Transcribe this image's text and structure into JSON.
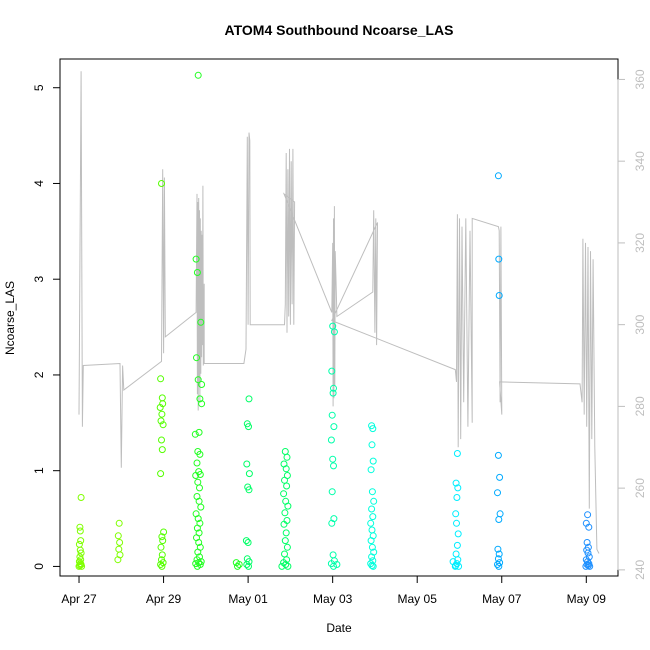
{
  "chart_data": {
    "type": "scatter",
    "title": "ATOM4 Southbound Ncoarse_LAS",
    "xlabel": "Date",
    "ylabel": "Ncoarse_LAS",
    "x_ticks": [
      "Apr 27",
      "Apr 29",
      "May 01",
      "May 03",
      "May 05",
      "May 07",
      "May 09"
    ],
    "x_tick_days": [
      0,
      2,
      4,
      6,
      8,
      10,
      12
    ],
    "xlim_days": [
      -0.45,
      12.75
    ],
    "y_ticks": [
      0,
      1,
      2,
      3,
      4,
      5
    ],
    "ylim": [
      -0.1,
      5.3
    ],
    "y2_ticks": [
      240,
      260,
      280,
      300,
      320,
      340,
      360
    ],
    "y2lim": [
      238.5,
      365
    ],
    "grid": false,
    "series": [
      {
        "role": "points",
        "marker": "open-circle",
        "colors": [
          "#7FFF00",
          "#55FF00",
          "#22FF22",
          "#00FF66",
          "#00FFAA",
          "#00FFDD",
          "#00EEFF",
          "#00AAFF",
          "#1E90FF"
        ],
        "points": [
          [
            0.05,
            0.72
          ],
          [
            0.02,
            0.41
          ],
          [
            0.03,
            0.37
          ],
          [
            0.04,
            0.27
          ],
          [
            0.01,
            0.23
          ],
          [
            0.03,
            0.17
          ],
          [
            0.05,
            0.14
          ],
          [
            0.02,
            0.1
          ],
          [
            0.04,
            0.07
          ],
          [
            0.01,
            0.05
          ],
          [
            0.03,
            0.03
          ],
          [
            0.05,
            0.02
          ],
          [
            0.02,
            0.01
          ],
          [
            0.06,
            0.0
          ],
          [
            0.0,
            0.0
          ],
          [
            0.95,
            0.45
          ],
          [
            0.93,
            0.32
          ],
          [
            0.96,
            0.25
          ],
          [
            0.94,
            0.18
          ],
          [
            0.97,
            0.12
          ],
          [
            0.92,
            0.07
          ],
          [
            1.95,
            4.0
          ],
          [
            1.93,
            1.96
          ],
          [
            1.97,
            1.76
          ],
          [
            1.98,
            1.7
          ],
          [
            1.92,
            1.66
          ],
          [
            1.96,
            1.59
          ],
          [
            1.94,
            1.52
          ],
          [
            1.99,
            1.48
          ],
          [
            1.95,
            1.32
          ],
          [
            1.97,
            1.22
          ],
          [
            1.93,
            0.97
          ],
          [
            2.0,
            0.36
          ],
          [
            1.96,
            0.31
          ],
          [
            1.98,
            0.27
          ],
          [
            1.94,
            0.2
          ],
          [
            1.97,
            0.12
          ],
          [
            1.95,
            0.07
          ],
          [
            1.99,
            0.04
          ],
          [
            1.93,
            0.02
          ],
          [
            1.96,
            0.0
          ],
          [
            2.82,
            5.13
          ],
          [
            2.77,
            3.21
          ],
          [
            2.8,
            3.07
          ],
          [
            2.78,
            2.18
          ],
          [
            2.82,
            1.95
          ],
          [
            2.86,
            1.75
          ],
          [
            2.9,
            1.9
          ],
          [
            2.9,
            1.7
          ],
          [
            2.75,
            1.38
          ],
          [
            2.84,
            1.4
          ],
          [
            2.88,
            2.55
          ],
          [
            2.81,
            1.2
          ],
          [
            2.86,
            1.17
          ],
          [
            2.79,
            1.08
          ],
          [
            2.83,
            0.99
          ],
          [
            2.87,
            0.96
          ],
          [
            2.76,
            0.95
          ],
          [
            2.81,
            0.88
          ],
          [
            2.85,
            0.82
          ],
          [
            2.79,
            0.73
          ],
          [
            2.84,
            0.68
          ],
          [
            2.88,
            0.62
          ],
          [
            2.77,
            0.55
          ],
          [
            2.82,
            0.5
          ],
          [
            2.86,
            0.45
          ],
          [
            2.8,
            0.4
          ],
          [
            2.84,
            0.35
          ],
          [
            2.78,
            0.3
          ],
          [
            2.83,
            0.25
          ],
          [
            2.87,
            0.2
          ],
          [
            2.81,
            0.15
          ],
          [
            2.85,
            0.1
          ],
          [
            2.79,
            0.07
          ],
          [
            2.83,
            0.04
          ],
          [
            2.87,
            0.02
          ],
          [
            2.8,
            0.0
          ],
          [
            2.76,
            0.03
          ],
          [
            2.89,
            0.05
          ],
          [
            4.02,
            1.75
          ],
          [
            3.98,
            1.49
          ],
          [
            4.01,
            1.46
          ],
          [
            3.97,
            1.07
          ],
          [
            4.03,
            0.97
          ],
          [
            3.99,
            0.83
          ],
          [
            4.02,
            0.8
          ],
          [
            3.96,
            0.27
          ],
          [
            4.0,
            0.25
          ],
          [
            3.98,
            0.08
          ],
          [
            4.02,
            0.05
          ],
          [
            3.97,
            0.02
          ],
          [
            4.01,
            0.0
          ],
          [
            3.75,
            0.0
          ],
          [
            3.79,
            0.02
          ],
          [
            3.72,
            0.04
          ],
          [
            4.88,
            1.2
          ],
          [
            4.92,
            1.14
          ],
          [
            4.85,
            1.07
          ],
          [
            4.9,
            1.02
          ],
          [
            4.93,
            0.95
          ],
          [
            4.86,
            0.9
          ],
          [
            4.91,
            0.84
          ],
          [
            4.84,
            0.76
          ],
          [
            4.89,
            0.68
          ],
          [
            4.94,
            0.63
          ],
          [
            4.87,
            0.56
          ],
          [
            4.92,
            0.48
          ],
          [
            4.85,
            0.44
          ],
          [
            4.9,
            0.35
          ],
          [
            4.88,
            0.27
          ],
          [
            4.93,
            0.2
          ],
          [
            4.86,
            0.13
          ],
          [
            4.91,
            0.07
          ],
          [
            4.84,
            0.04
          ],
          [
            4.89,
            0.02
          ],
          [
            4.94,
            0.0
          ],
          [
            4.8,
            0.0
          ],
          [
            6.0,
            2.51
          ],
          [
            6.04,
            2.45
          ],
          [
            5.98,
            2.04
          ],
          [
            6.02,
            1.86
          ],
          [
            6.01,
            1.81
          ],
          [
            5.99,
            1.58
          ],
          [
            6.03,
            1.46
          ],
          [
            5.97,
            1.32
          ],
          [
            6.0,
            1.12
          ],
          [
            6.02,
            1.05
          ],
          [
            5.99,
            0.78
          ],
          [
            6.03,
            0.5
          ],
          [
            5.98,
            0.45
          ],
          [
            6.01,
            0.12
          ],
          [
            6.04,
            0.06
          ],
          [
            5.97,
            0.03
          ],
          [
            6.02,
            0.0
          ],
          [
            6.1,
            0.02
          ],
          [
            6.92,
            1.47
          ],
          [
            6.95,
            1.44
          ],
          [
            6.93,
            1.27
          ],
          [
            6.96,
            1.1
          ],
          [
            6.91,
            1.01
          ],
          [
            6.94,
            0.78
          ],
          [
            6.97,
            0.68
          ],
          [
            6.92,
            0.6
          ],
          [
            6.95,
            0.52
          ],
          [
            6.9,
            0.45
          ],
          [
            6.93,
            0.38
          ],
          [
            6.96,
            0.32
          ],
          [
            6.91,
            0.27
          ],
          [
            6.94,
            0.2
          ],
          [
            6.97,
            0.15
          ],
          [
            6.92,
            0.1
          ],
          [
            6.95,
            0.06
          ],
          [
            6.9,
            0.03
          ],
          [
            6.93,
            0.01
          ],
          [
            6.96,
            0.0
          ],
          [
            8.95,
            1.18
          ],
          [
            8.92,
            0.87
          ],
          [
            8.96,
            0.82
          ],
          [
            8.94,
            0.72
          ],
          [
            8.91,
            0.55
          ],
          [
            8.93,
            0.45
          ],
          [
            8.97,
            0.34
          ],
          [
            8.95,
            0.22
          ],
          [
            8.92,
            0.13
          ],
          [
            8.96,
            0.07
          ],
          [
            8.94,
            0.03
          ],
          [
            8.91,
            0.01
          ],
          [
            8.98,
            0.0
          ],
          [
            8.85,
            0.05
          ],
          [
            8.9,
            0.0
          ],
          [
            9.92,
            4.08
          ],
          [
            9.93,
            3.21
          ],
          [
            9.94,
            2.83
          ],
          [
            9.92,
            1.16
          ],
          [
            9.95,
            0.93
          ],
          [
            9.9,
            0.77
          ],
          [
            9.96,
            0.55
          ],
          [
            9.93,
            0.49
          ],
          [
            9.91,
            0.18
          ],
          [
            9.94,
            0.13
          ],
          [
            9.92,
            0.08
          ],
          [
            9.95,
            0.04
          ],
          [
            9.9,
            0.02
          ],
          [
            9.93,
            0.0
          ],
          [
            12.03,
            0.54
          ],
          [
            12.0,
            0.45
          ],
          [
            12.06,
            0.41
          ],
          [
            12.02,
            0.25
          ],
          [
            12.05,
            0.2
          ],
          [
            12.01,
            0.17
          ],
          [
            12.04,
            0.14
          ],
          [
            12.07,
            0.1
          ],
          [
            12.0,
            0.07
          ],
          [
            12.03,
            0.05
          ],
          [
            12.06,
            0.03
          ],
          [
            12.02,
            0.02
          ],
          [
            12.05,
            0.01
          ],
          [
            12.08,
            0.0
          ],
          [
            11.99,
            0.0
          ]
        ]
      },
      {
        "role": "secondary-line",
        "axis": "right",
        "color": "#bebebe",
        "points": [
          [
            0.0,
            278
          ],
          [
            0.05,
            362
          ],
          [
            0.08,
            275
          ],
          [
            0.1,
            290
          ],
          [
            0.97,
            290.5
          ],
          [
            1.0,
            265
          ],
          [
            1.03,
            290
          ],
          [
            1.06,
            284
          ],
          [
            1.95,
            291
          ],
          [
            1.98,
            338
          ],
          [
            2.0,
            293
          ],
          [
            2.02,
            336
          ],
          [
            2.04,
            297
          ],
          [
            2.77,
            303
          ],
          [
            2.79,
            332
          ],
          [
            2.8,
            283
          ],
          [
            2.81,
            330
          ],
          [
            2.82,
            279
          ],
          [
            2.83,
            331
          ],
          [
            2.84,
            285
          ],
          [
            2.85,
            328
          ],
          [
            2.86,
            281
          ],
          [
            2.87,
            326
          ],
          [
            2.88,
            288
          ],
          [
            2.89,
            323
          ],
          [
            2.9,
            292
          ],
          [
            2.91,
            322
          ],
          [
            2.92,
            295
          ],
          [
            2.93,
            334
          ],
          [
            2.94,
            290
          ],
          [
            2.96,
            310
          ],
          [
            2.96,
            290.5
          ],
          [
            3.9,
            290.5
          ],
          [
            3.95,
            294
          ],
          [
            3.98,
            346
          ],
          [
            4.0,
            300
          ],
          [
            4.02,
            347
          ],
          [
            4.04,
            345
          ],
          [
            4.05,
            300
          ],
          [
            4.86,
            300
          ],
          [
            4.88,
            305
          ],
          [
            4.9,
            342
          ],
          [
            4.92,
            298
          ],
          [
            4.94,
            338
          ],
          [
            4.96,
            302
          ],
          [
            4.98,
            343
          ],
          [
            5.0,
            300
          ],
          [
            5.02,
            340
          ],
          [
            5.04,
            305
          ],
          [
            5.06,
            343
          ],
          [
            5.08,
            300
          ],
          [
            5.1,
            330
          ],
          [
            4.85,
            332
          ],
          [
            5.98,
            303
          ],
          [
            6.0,
            320
          ],
          [
            6.01,
            280
          ],
          [
            6.02,
            326
          ],
          [
            6.03,
            282
          ],
          [
            6.04,
            329
          ],
          [
            6.05,
            285
          ],
          [
            6.06,
            318
          ],
          [
            6.08,
            311
          ],
          [
            6.1,
            302
          ],
          [
            6.95,
            308
          ],
          [
            6.97,
            328
          ],
          [
            7.0,
            298
          ],
          [
            7.02,
            326
          ],
          [
            7.04,
            295
          ],
          [
            7.06,
            325
          ],
          [
            5.98,
            301
          ],
          [
            8.9,
            289
          ],
          [
            8.93,
            286
          ],
          [
            8.95,
            327
          ],
          [
            8.97,
            270
          ],
          [
            9.0,
            326
          ],
          [
            9.03,
            272
          ],
          [
            9.06,
            324
          ],
          [
            9.1,
            281
          ],
          [
            9.15,
            326
          ],
          [
            9.2,
            275
          ],
          [
            9.25,
            323
          ],
          [
            9.3,
            276
          ],
          [
            9.3,
            326
          ],
          [
            9.92,
            324
          ],
          [
            9.94,
            323
          ],
          [
            9.96,
            281
          ],
          [
            9.98,
            324
          ],
          [
            10.0,
            278
          ],
          [
            9.95,
            286
          ],
          [
            11.85,
            285.5
          ],
          [
            11.9,
            281
          ],
          [
            11.92,
            321
          ],
          [
            11.95,
            278
          ],
          [
            11.98,
            320
          ],
          [
            12.01,
            275
          ],
          [
            12.04,
            319
          ],
          [
            12.07,
            255
          ],
          [
            12.1,
            318
          ],
          [
            12.13,
            272
          ],
          [
            12.16,
            316
          ],
          [
            12.2,
            270
          ],
          [
            12.25,
            245
          ],
          [
            12.3,
            244
          ]
        ]
      }
    ]
  }
}
